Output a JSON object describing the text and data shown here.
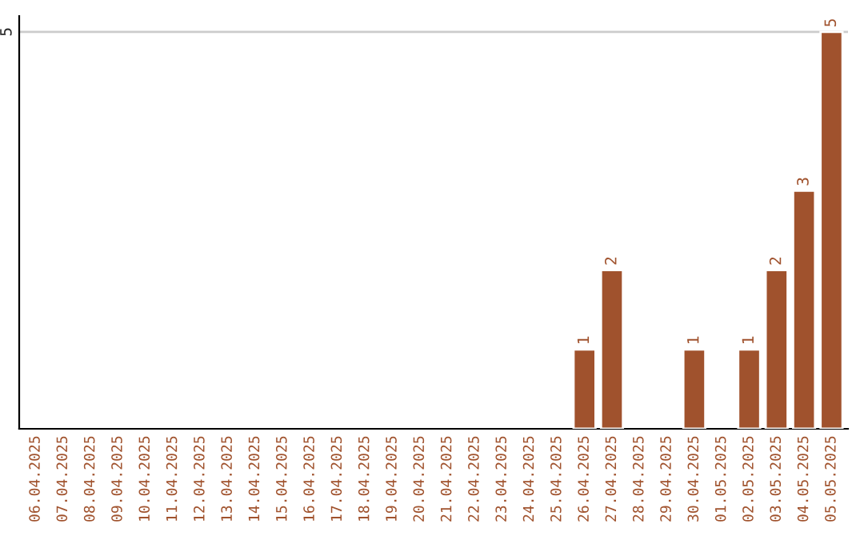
{
  "chart_data": {
    "type": "bar",
    "categories": [
      "06.04.2025",
      "07.04.2025",
      "08.04.2025",
      "09.04.2025",
      "10.04.2025",
      "11.04.2025",
      "12.04.2025",
      "13.04.2025",
      "14.04.2025",
      "15.04.2025",
      "16.04.2025",
      "17.04.2025",
      "18.04.2025",
      "19.04.2025",
      "20.04.2025",
      "21.04.2025",
      "22.04.2025",
      "23.04.2025",
      "24.04.2025",
      "25.04.2025",
      "26.04.2025",
      "27.04.2025",
      "28.04.2025",
      "29.04.2025",
      "30.04.2025",
      "01.05.2025",
      "02.05.2025",
      "03.05.2025",
      "04.05.2025",
      "05.05.2025"
    ],
    "values": [
      null,
      null,
      null,
      null,
      null,
      null,
      null,
      null,
      null,
      null,
      null,
      null,
      null,
      null,
      null,
      null,
      null,
      null,
      null,
      null,
      1,
      2,
      null,
      null,
      1,
      null,
      1,
      2,
      3,
      5
    ],
    "data_labels": true,
    "color": "#a0522d",
    "ylim": [
      0,
      5.2
    ],
    "yticks": [
      5
    ],
    "grid": "y"
  }
}
